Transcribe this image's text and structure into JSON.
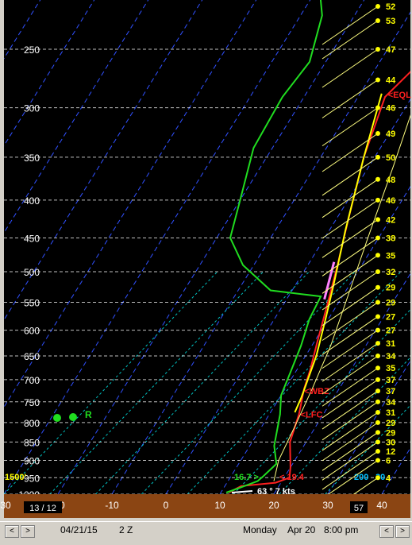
{
  "chart_data": {
    "type": "line",
    "title": "",
    "x_axis": {
      "ticks": [
        "-30",
        "-20",
        "-10",
        "0",
        "10",
        "20",
        "30",
        "40"
      ],
      "range": [
        -31,
        43
      ],
      "unit": "°C"
    },
    "y_axis": {
      "ticks": [
        "250",
        "300",
        "350",
        "400",
        "450",
        "500",
        "550",
        "600",
        "650",
        "700",
        "750",
        "800",
        "850",
        "900",
        "950",
        "1000"
      ],
      "range": [
        200,
        1000
      ],
      "scale": "log",
      "unit": "hPa"
    },
    "grid": true,
    "series": [
      {
        "role": "temperature",
        "color": "#ff2020",
        "points": [
          [
            1.8,
            220
          ],
          [
            -1.5,
            250
          ],
          [
            -5,
            290
          ],
          [
            -2,
            350
          ],
          [
            2,
            420
          ],
          [
            5.5,
            490
          ],
          [
            8,
            550
          ],
          [
            10.5,
            620
          ],
          [
            12.5,
            680
          ],
          [
            13.5,
            720
          ],
          [
            15.5,
            780
          ],
          [
            17,
            850
          ],
          [
            20,
            920
          ],
          [
            21,
            950
          ],
          [
            19,
            965
          ],
          [
            13,
            975
          ],
          [
            11.5,
            995
          ]
        ]
      },
      {
        "role": "dewpoint",
        "color": "#20dd20",
        "points": [
          [
            -31,
            200
          ],
          [
            -26,
            225
          ],
          [
            -23,
            260
          ],
          [
            -24,
            290
          ],
          [
            -23.5,
            340
          ],
          [
            -20,
            400
          ],
          [
            -17.5,
            450
          ],
          [
            -12,
            490
          ],
          [
            -4,
            530
          ],
          [
            6,
            540
          ],
          [
            6.5,
            580
          ],
          [
            8,
            630
          ],
          [
            9,
            680
          ],
          [
            10,
            735
          ],
          [
            12,
            780
          ],
          [
            14.5,
            860
          ],
          [
            17,
            910
          ],
          [
            16,
            945
          ],
          [
            15.5,
            960
          ],
          [
            13,
            980
          ],
          [
            11,
            995
          ]
        ]
      },
      {
        "role": "parcel",
        "color": "#ffff00",
        "points": [
          [
            -6,
            287
          ],
          [
            -2,
            350
          ],
          [
            3,
            440
          ],
          [
            7,
            520
          ],
          [
            9.5,
            580
          ],
          [
            12,
            650
          ],
          [
            14,
            740
          ],
          [
            14.5,
            775
          ]
        ]
      },
      {
        "role": "virtual-parcel",
        "color": "#ffff80",
        "points": [
          [
            -5,
            215
          ],
          [
            0,
            275
          ],
          [
            4.5,
            360
          ],
          [
            8,
            450
          ],
          [
            11,
            540
          ],
          [
            13.5,
            630
          ],
          [
            15,
            720
          ],
          [
            16,
            800
          ],
          [
            17,
            900
          ],
          [
            18.5,
            960
          ]
        ]
      },
      {
        "role": "wet-bulb-segment",
        "color": "#ff80ff",
        "points": [
          [
            4.5,
            485
          ],
          [
            7,
            545
          ]
        ]
      }
    ],
    "levels": [
      {
        "label": "EQL",
        "temp": -5,
        "p": 288
      },
      {
        "label": "WBZ",
        "temp": 13.5,
        "p": 725
      },
      {
        "label": "LFC",
        "temp": 15.5,
        "p": 780
      }
    ],
    "surface": {
      "temp_label": "19.4",
      "temp": 19.4,
      "dewpoint_label": "16.7",
      "wind_label": "63 ° 7 kts",
      "height_label": "1500'",
      "right_label": "200",
      "right_label2": "30"
    },
    "wind_speeds": [
      "52",
      "53",
      "47",
      "44",
      "46",
      "49",
      "50",
      "48",
      "46",
      "42",
      "38",
      "35",
      "32",
      "29",
      "29",
      "27",
      "27",
      "31",
      "34",
      "35",
      "37",
      "37",
      "34",
      "31",
      "29",
      "29",
      "30",
      "12",
      "6",
      "4"
    ],
    "wind_levels": [
      200,
      225,
      250,
      275,
      300,
      325,
      350,
      375,
      400,
      425,
      450,
      475,
      500,
      525,
      550,
      575,
      600,
      625,
      650,
      675,
      700,
      725,
      750,
      775,
      800,
      825,
      850,
      875,
      900,
      950
    ],
    "markers": [
      {
        "label": "R",
        "color": "#20dd20"
      }
    ],
    "bottom_box": "13 / 12",
    "bottom_right_box": "57"
  },
  "statusbar": {
    "prev": "<",
    "next": ">",
    "date": "04/21/15",
    "time": "2 Z",
    "day": "Monday",
    "date2": "Apr 20",
    "time2": "8:00 pm",
    "prev2": "<",
    "next2": ">"
  },
  "colors": {
    "background": "#000000",
    "isobar": "#ffffff",
    "isotherm": "#3050ff",
    "mixing": "#00c0c0",
    "axis_band": "#8b4513"
  }
}
